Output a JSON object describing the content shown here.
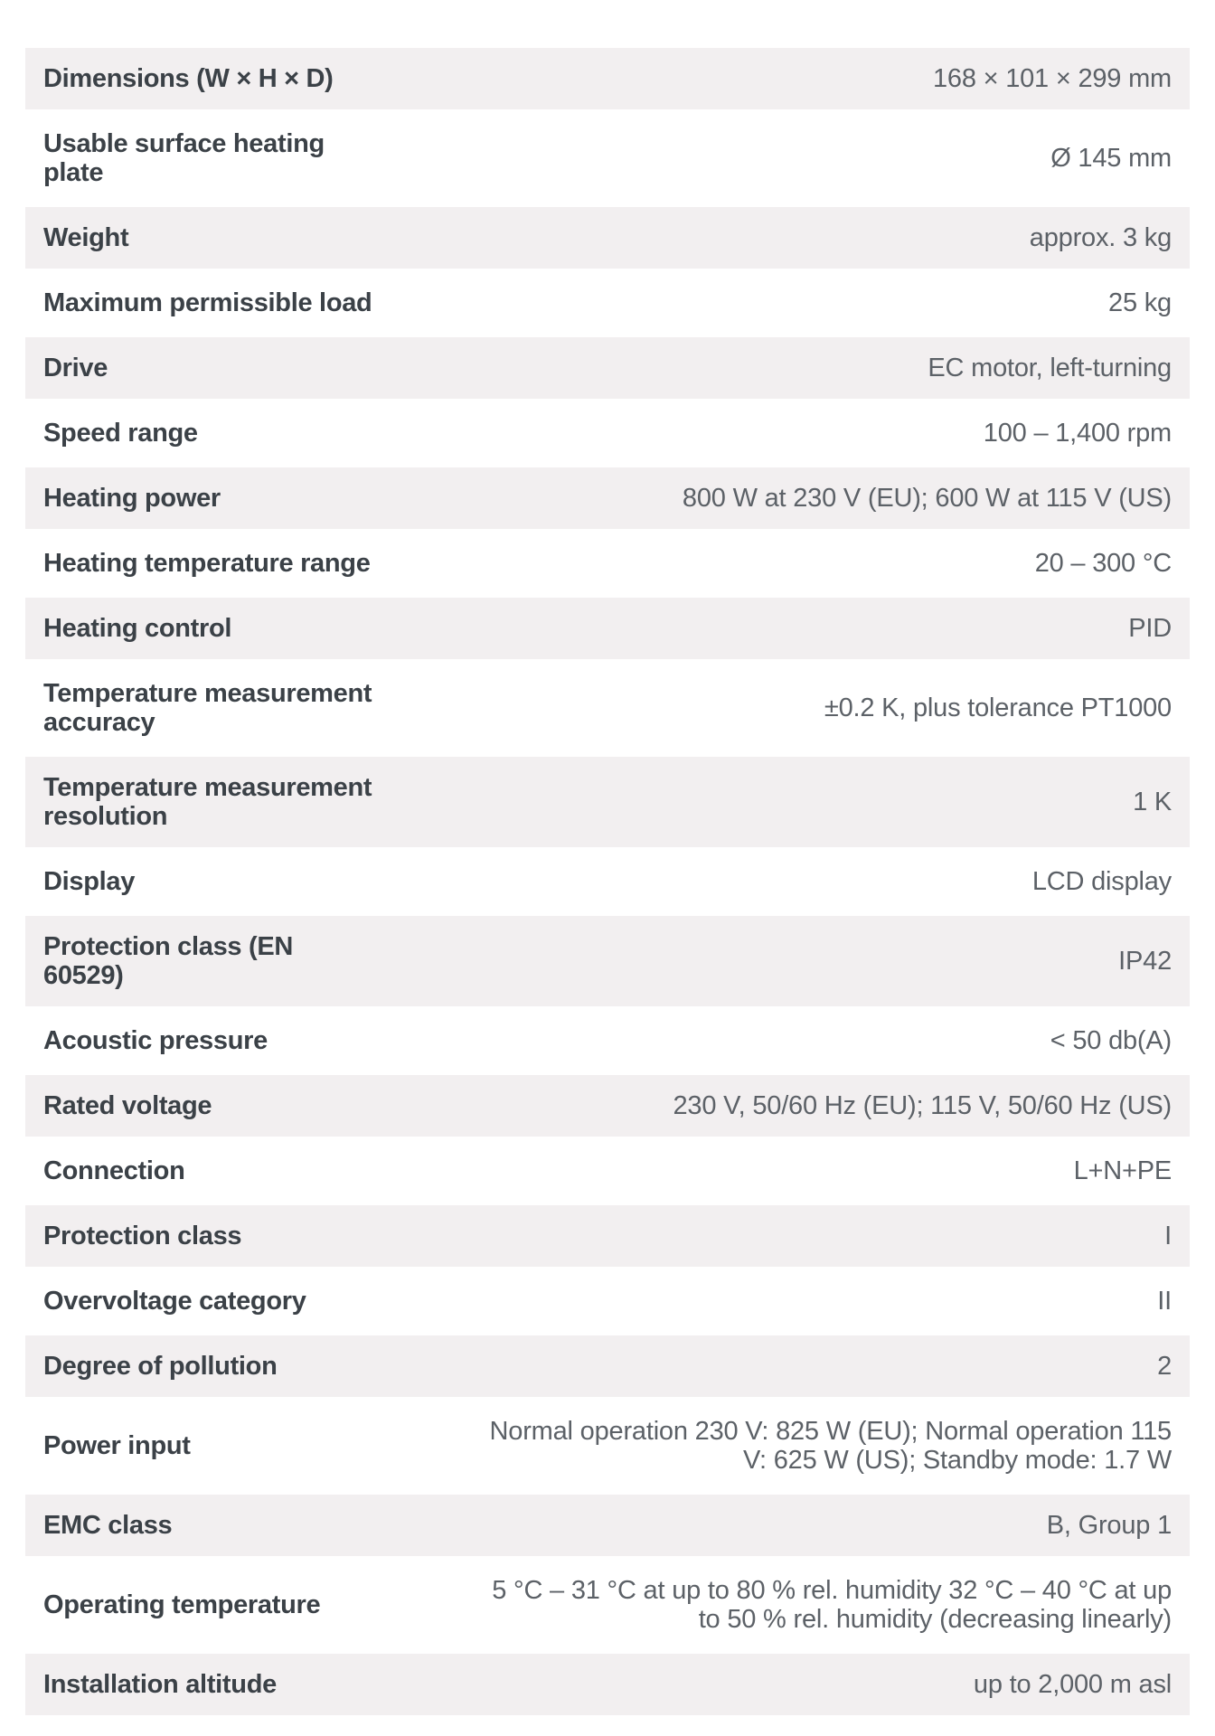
{
  "colors": {
    "stripe_bg": "#f2eff0",
    "label_text": "#3b4147",
    "value_text": "#5c6167"
  },
  "page": {
    "rows": [
      {
        "label": "Dimensions (W × H × D)",
        "value": "168 × 101 × 299 mm"
      },
      {
        "label": "Usable surface heating\nplate",
        "value": "Ø 145 mm"
      },
      {
        "label": "Weight",
        "value": "approx. 3 kg"
      },
      {
        "label": "Maximum permissible load",
        "value": "25 kg"
      },
      {
        "label": "Drive",
        "value": "EC motor, left-turning"
      },
      {
        "label": "Speed range",
        "value": "100 – 1,400 rpm"
      },
      {
        "label": "Heating power",
        "value": "800 W at 230 V (EU); 600 W at 115 V (US)"
      },
      {
        "label": "Heating temperature range",
        "value": "20 – 300 °C"
      },
      {
        "label": "Heating control",
        "value": "PID"
      },
      {
        "label": "Temperature measurement\naccuracy",
        "value": "±0.2 K, plus tolerance PT1000"
      },
      {
        "label": "Temperature measurement\nresolution",
        "value": "1 K"
      },
      {
        "label": "Display",
        "value": "LCD display"
      },
      {
        "label": "Protection class (EN\n60529)",
        "value": "IP42"
      },
      {
        "label": "Acoustic pressure",
        "value": "< 50 db(A)"
      },
      {
        "label": "Rated voltage",
        "value": "230 V, 50/60 Hz (EU); 115 V, 50/60 Hz (US)"
      },
      {
        "label": "Connection",
        "value": "L+N+PE"
      },
      {
        "label": "Protection class",
        "value": "I"
      },
      {
        "label": "Overvoltage category",
        "value": "II"
      },
      {
        "label": "Degree of pollution",
        "value": "2"
      },
      {
        "label": "Power input",
        "value": "Normal operation 230 V: 825 W (EU); Normal operation 115\nV: 625 W (US); Standby mode: 1.7 W"
      },
      {
        "label": "EMC class",
        "value": "B, Group 1"
      },
      {
        "label": "Operating temperature",
        "value": "5 °C – 31 °C at up to 80 % rel. humidity 32 °C – 40 °C at up\nto 50 % rel. humidity (decreasing linearly)"
      },
      {
        "label": "Installation altitude",
        "value": "up to 2,000 m asl"
      }
    ]
  }
}
